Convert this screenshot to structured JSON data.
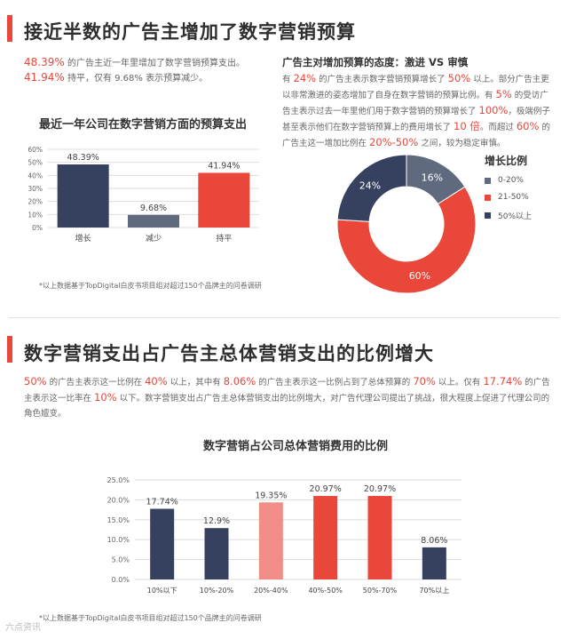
{
  "section1": {
    "title": "接近半数的广告主增加了数字营销预算",
    "stat1_value": "48.39%",
    "stat1_text": "的广告主近一年里增加了数字营销预算支出。",
    "stat2_value": "41.94%",
    "stat2_text": "持平，仅有 9.68% 表示预算减少。",
    "attitude_title": "广告主对增加预算的态度：激进 VS 审慎",
    "attitude_paragraph": [
      {
        "t": "有 "
      },
      {
        "t": "24%",
        "hl": true
      },
      {
        "t": " 的广告主表示数字营销预算增长了 "
      },
      {
        "t": "50%",
        "hl": true
      },
      {
        "t": " 以上。部分广告主更以非常激进的姿态增加了自身在数字营销的预算比例。有 "
      },
      {
        "t": "5%",
        "hl": true
      },
      {
        "t": " 的受访广告主表示过去一年里他们用于数字营销的预算增长了 "
      },
      {
        "t": "100%",
        "hl": true
      },
      {
        "t": "，极端例子甚至表示他们在数字营销预算上的费用增长了 "
      },
      {
        "t": "10 倍",
        "hl": true
      },
      {
        "t": "。而超过 "
      },
      {
        "t": "60%",
        "hl": true
      },
      {
        "t": " 的广告主这一增加比例在 "
      },
      {
        "t": "20%-50%",
        "hl": true
      },
      {
        "t": " 之间，较为稳定审慎。"
      }
    ],
    "footnote": "*以上数据基于TopDigital白皮书项目组对超过150个品牌主的问卷调研"
  },
  "section2": {
    "title": "数字营销支出占广告主总体营销支出的比例增大",
    "paragraph": [
      {
        "t": "50%",
        "hl": true
      },
      {
        "t": " 的广告主表示这一比例在 "
      },
      {
        "t": "40%",
        "hl": true
      },
      {
        "t": " 以上，其中有 "
      },
      {
        "t": "8.06%",
        "hl": true
      },
      {
        "t": " 的广告主表示这一比例占到了总体预算的 "
      },
      {
        "t": "70%",
        "hl": true
      },
      {
        "t": " 以上。仅有 "
      },
      {
        "t": "17.74%",
        "hl": true
      },
      {
        "t": " 的广告主表示这一比率在 "
      },
      {
        "t": "10%",
        "hl": true
      },
      {
        "t": " 以下。数字营销支出占广告主总体营销支出的比例增大，对广告代理公司提出了挑战，很大程度上促进了代理公司的角色嬗变。"
      }
    ],
    "footnote": "*以上数据基于TopDigital白皮书项目组对超过150个品牌主的问卷调研"
  },
  "watermark": "六点资讯",
  "colors": {
    "accent": "#e8473a",
    "navy": "#364160",
    "slate": "#5f6a7e",
    "pink": "#f08d86",
    "red": "#e8473a",
    "grid": "#dddddd"
  },
  "chart_data": [
    {
      "type": "bar",
      "title": "最近一年公司在数字营销方面的预算支出",
      "categories": [
        "增长",
        "减少",
        "持平"
      ],
      "values": [
        48.39,
        9.68,
        41.94
      ],
      "value_labels": [
        "48.39%",
        "9.68%",
        "41.94%"
      ],
      "bar_colors": [
        "#364160",
        "#5f6a7e",
        "#e8473a"
      ],
      "ylim": [
        0,
        60
      ],
      "yticks": [
        0,
        10,
        20,
        30,
        40,
        50,
        60
      ],
      "ytick_labels": [
        "0%",
        "10%",
        "20%",
        "30%",
        "40%",
        "50%",
        "60%"
      ],
      "grid": true,
      "xlabel": "",
      "ylabel": ""
    },
    {
      "type": "pie",
      "donut": true,
      "legend_title": "增长比例",
      "legend_position": "right",
      "slices": [
        {
          "label": "0-20%",
          "value": 16,
          "display": "16%",
          "color": "#5f6a7e"
        },
        {
          "label": "21-50%",
          "value": 60,
          "display": "60%",
          "color": "#e8473a"
        },
        {
          "label": "50%以上",
          "value": 24,
          "display": "24%",
          "color": "#364160"
        }
      ]
    },
    {
      "type": "bar",
      "title": "数字营销占公司总体营销费用的比例",
      "categories": [
        "10%以下",
        "10%-20%",
        "20%-40%",
        "40%-50%",
        "50%-70%",
        "70%以上"
      ],
      "values": [
        17.74,
        12.9,
        19.35,
        20.97,
        20.97,
        8.06
      ],
      "value_labels": [
        "17.74%",
        "12.9%",
        "19.35%",
        "20.97%",
        "20.97%",
        "8.06%"
      ],
      "bar_colors": [
        "#364160",
        "#364160",
        "#f08d86",
        "#e8473a",
        "#e8473a",
        "#364160"
      ],
      "ylim": [
        0,
        25
      ],
      "yticks": [
        0,
        5,
        10,
        15,
        20,
        25
      ],
      "ytick_labels": [
        "0.0%",
        "5.0%",
        "10.0%",
        "15.0%",
        "20.0%",
        "25.0%"
      ],
      "grid": true,
      "xlabel": "",
      "ylabel": ""
    }
  ]
}
